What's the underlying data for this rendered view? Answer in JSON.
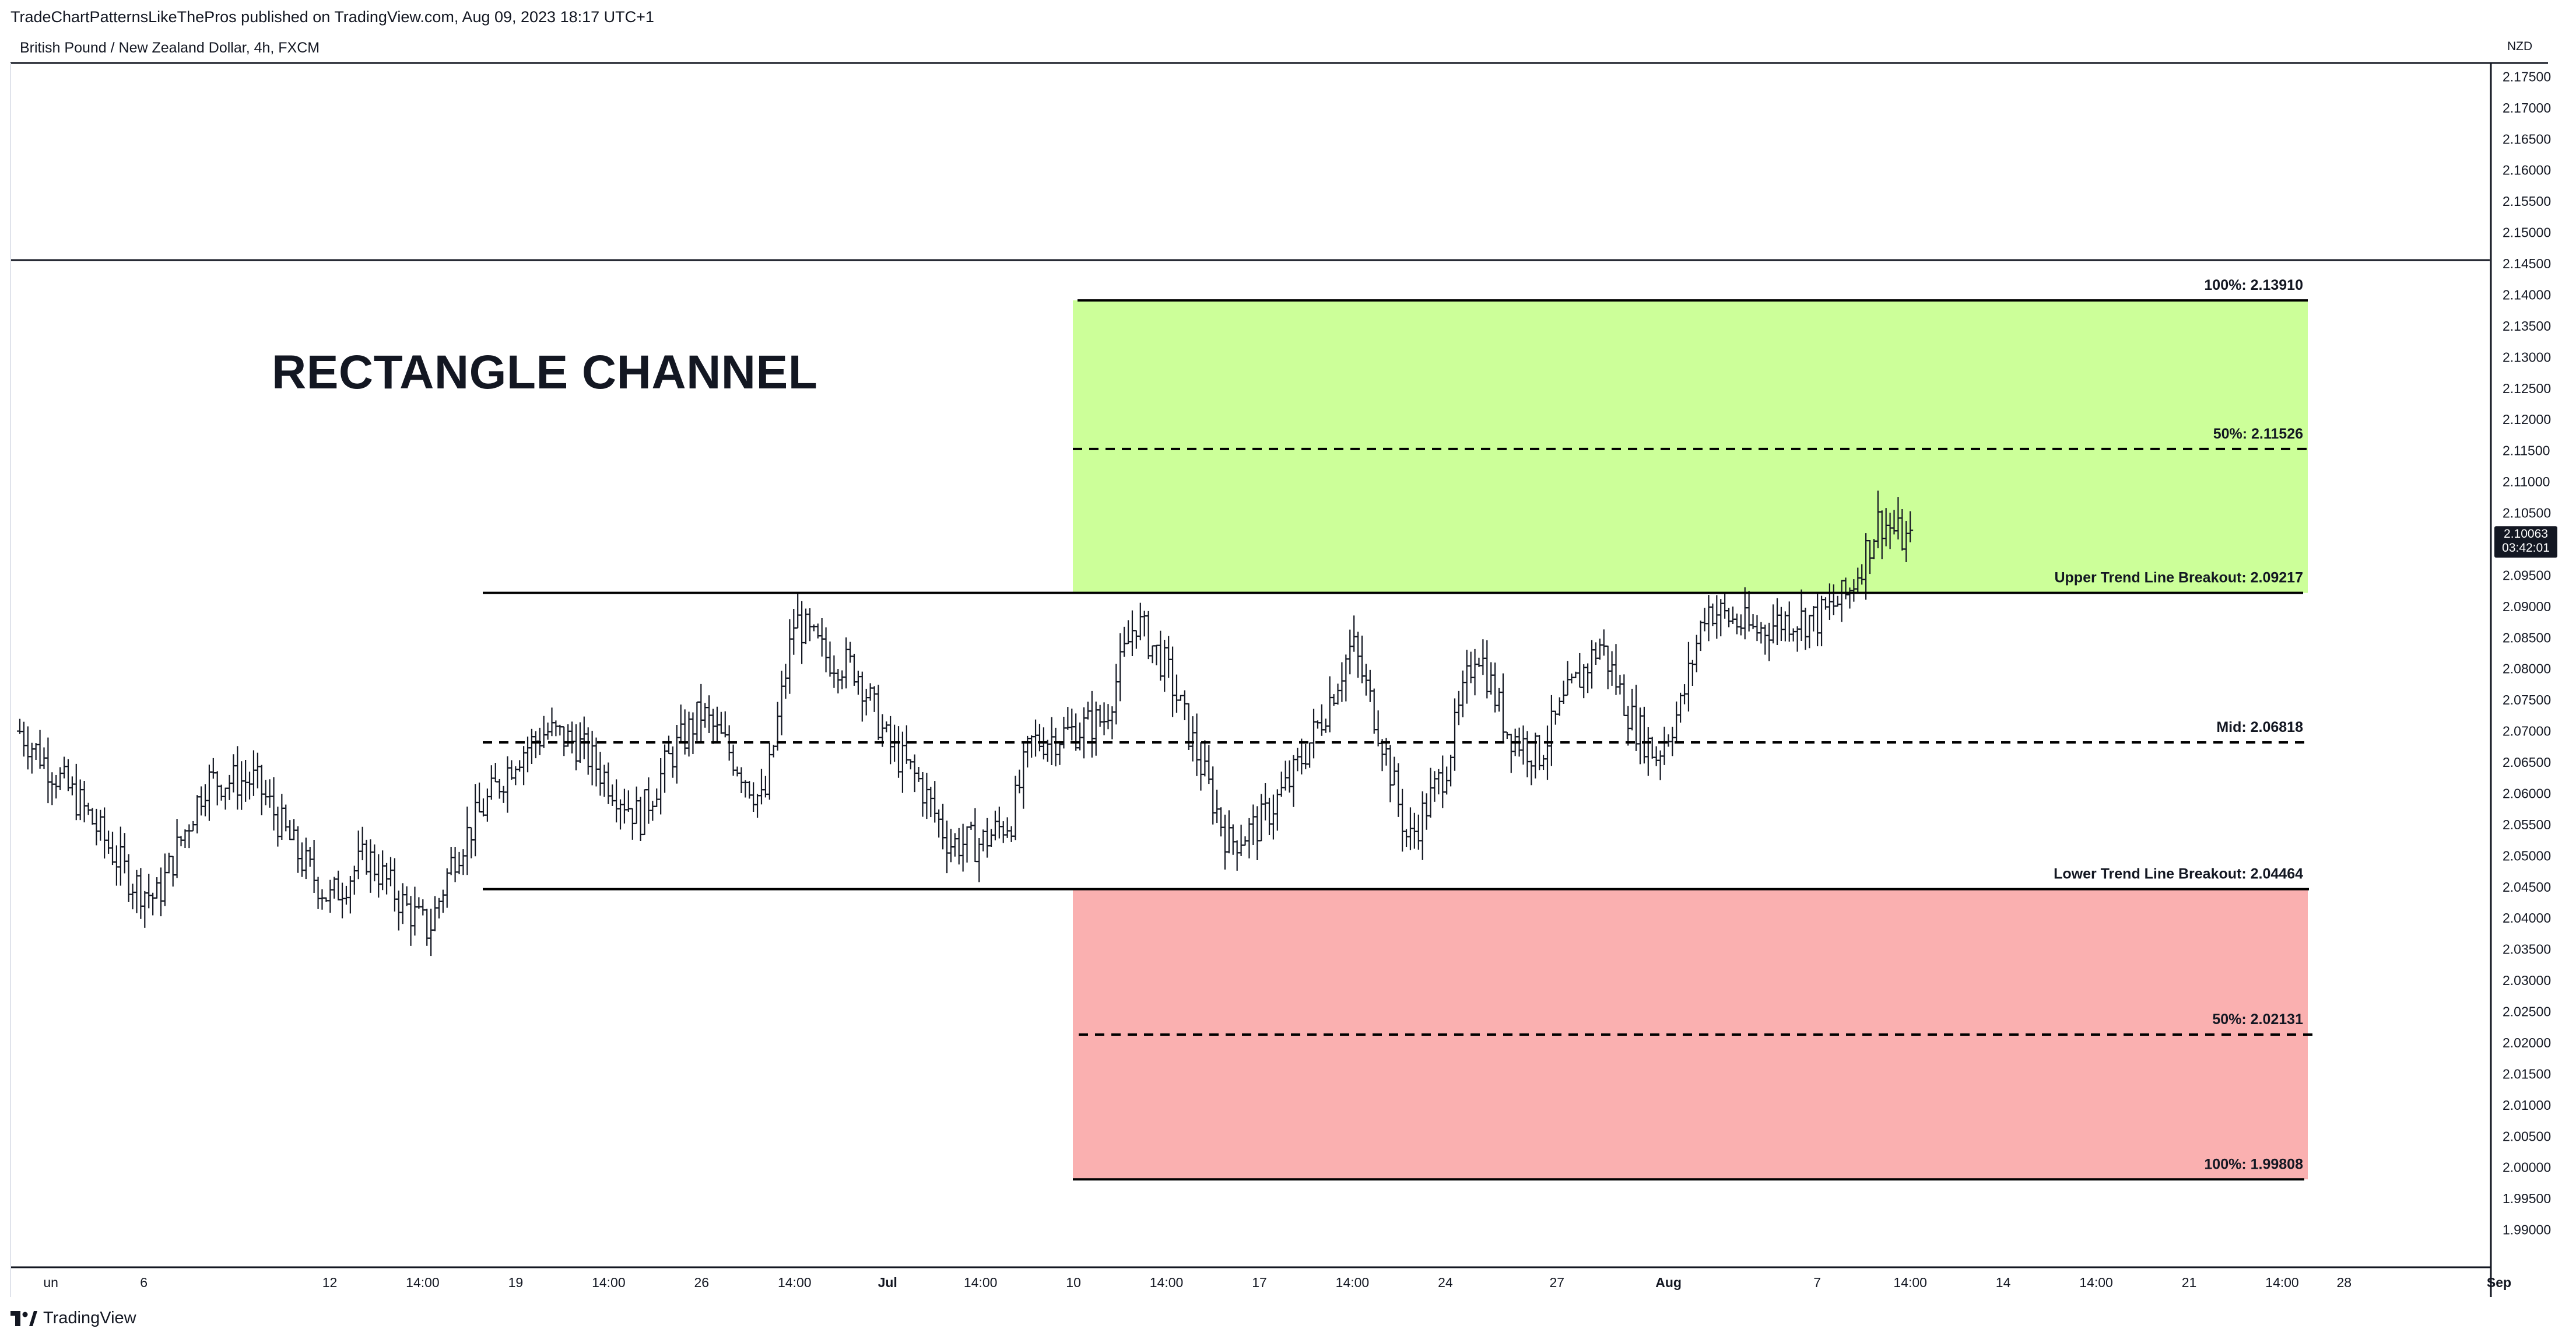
{
  "header": {
    "published_by": "TradeChartPatternsLikeThePros published on TradingView.com, Aug 09, 2023 18:17 UTC+1",
    "symbol": "British Pound / New Zealand Dollar, 4h, FXCM",
    "currency": "NZD"
  },
  "annotation_title": "RECTANGLE CHANNEL",
  "footer": {
    "brand": "TradingView"
  },
  "colors": {
    "profit_zone": "#ccff99",
    "loss_zone": "#fab0b0",
    "line": "#000000",
    "candle": "#131722"
  },
  "chart_data": {
    "type": "ohlc",
    "timeframe": "4h",
    "ylim": [
      1.988,
      2.177
    ],
    "y_ticks": [
      "2.17500",
      "2.17000",
      "2.16500",
      "2.16000",
      "2.15500",
      "2.15000",
      "2.14500",
      "2.14000",
      "2.13500",
      "2.13000",
      "2.12500",
      "2.12000",
      "2.11500",
      "2.11000",
      "2.10500",
      "2.10000",
      "2.09500",
      "2.09000",
      "2.08500",
      "2.08000",
      "2.07500",
      "2.07000",
      "2.06500",
      "2.06000",
      "2.05500",
      "2.05000",
      "2.04500",
      "2.04000",
      "2.03500",
      "2.03000",
      "2.02500",
      "2.02000",
      "2.01500",
      "2.01000",
      "2.00500",
      "2.00000",
      "1.99500",
      "1.99000"
    ],
    "x_ticks": [
      {
        "label": "un",
        "x": 0.5
      },
      {
        "label": "6",
        "x": 2
      },
      {
        "label": "12",
        "x": 5
      },
      {
        "label": "14:00",
        "x": 6.5
      },
      {
        "label": "19",
        "x": 8
      },
      {
        "label": "14:00",
        "x": 9.5
      },
      {
        "label": "26",
        "x": 11
      },
      {
        "label": "14:00",
        "x": 12.5
      },
      {
        "label": "Jul",
        "x": 14
      },
      {
        "label": "14:00",
        "x": 15.5
      },
      {
        "label": "10",
        "x": 17
      },
      {
        "label": "14:00",
        "x": 18.5
      },
      {
        "label": "17",
        "x": 20
      },
      {
        "label": "14:00",
        "x": 21.5
      },
      {
        "label": "24",
        "x": 23
      },
      {
        "label": "27",
        "x": 24.8
      },
      {
        "label": "Aug",
        "x": 26.6
      },
      {
        "label": "7",
        "x": 29
      },
      {
        "label": "14:00",
        "x": 30.5
      },
      {
        "label": "14",
        "x": 32
      },
      {
        "label": "14:00",
        "x": 33.5
      },
      {
        "label": "21",
        "x": 35
      },
      {
        "label": "14:00",
        "x": 36.5
      },
      {
        "label": "28",
        "x": 37.5
      },
      {
        "label": "Sep",
        "x": 40
      }
    ],
    "last_price": "2.10063",
    "countdown": "03:42:01",
    "levels": [
      {
        "name": "target-up-100",
        "label": "100%: 2.13910",
        "value": 2.1391,
        "style": "solid"
      },
      {
        "name": "target-up-50",
        "label": "50%: 2.11526",
        "value": 2.11526,
        "style": "dashed"
      },
      {
        "name": "upper-breakout",
        "label": "Upper Trend Line Breakout: 2.09217",
        "value": 2.09217,
        "style": "solid"
      },
      {
        "name": "mid",
        "label": "Mid: 2.06818",
        "value": 2.06818,
        "style": "dashed"
      },
      {
        "name": "lower-breakout",
        "label": "Lower Trend Line Breakout: 2.04464",
        "value": 2.04464,
        "style": "solid"
      },
      {
        "name": "target-down-50",
        "label": "50%: 2.02131",
        "value": 2.02131,
        "style": "dashed"
      },
      {
        "name": "target-down-100",
        "label": "100%: 1.99808",
        "value": 1.99808,
        "style": "solid"
      }
    ],
    "price_path": [
      [
        0,
        2.07
      ],
      [
        1,
        2.058
      ],
      [
        1.8,
        2.046
      ],
      [
        2.2,
        2.043
      ],
      [
        3,
        2.062
      ],
      [
        3.8,
        2.062
      ],
      [
        4.5,
        2.05
      ],
      [
        5,
        2.043
      ],
      [
        5.6,
        2.05
      ],
      [
        6.2,
        2.042
      ],
      [
        6.6,
        2.038
      ],
      [
        7,
        2.05
      ],
      [
        7.5,
        2.058
      ],
      [
        8,
        2.066
      ],
      [
        8.5,
        2.07
      ],
      [
        9,
        2.068
      ],
      [
        9.5,
        2.062
      ],
      [
        10,
        2.056
      ],
      [
        10.5,
        2.066
      ],
      [
        11,
        2.073
      ],
      [
        11.5,
        2.066
      ],
      [
        12,
        2.058
      ],
      [
        12.5,
        2.088
      ],
      [
        13,
        2.082
      ],
      [
        13.5,
        2.08
      ],
      [
        14,
        2.068
      ],
      [
        14.5,
        2.062
      ],
      [
        15,
        2.052
      ],
      [
        15.5,
        2.052
      ],
      [
        16,
        2.056
      ],
      [
        16.3,
        2.068
      ],
      [
        17,
        2.07
      ],
      [
        17.5,
        2.072
      ],
      [
        18,
        2.088
      ],
      [
        18.5,
        2.08
      ],
      [
        19,
        2.066
      ],
      [
        19.5,
        2.052
      ],
      [
        20,
        2.055
      ],
      [
        20.5,
        2.062
      ],
      [
        21,
        2.072
      ],
      [
        21.5,
        2.084
      ],
      [
        22,
        2.068
      ],
      [
        22.4,
        2.052
      ],
      [
        23,
        2.064
      ],
      [
        23.5,
        2.084
      ],
      [
        24,
        2.07
      ],
      [
        24.5,
        2.066
      ],
      [
        25,
        2.076
      ],
      [
        25.5,
        2.084
      ],
      [
        26,
        2.072
      ],
      [
        26.4,
        2.066
      ],
      [
        26.8,
        2.074
      ],
      [
        27.2,
        2.09
      ],
      [
        27.6,
        2.088
      ],
      [
        28,
        2.086
      ],
      [
        28.5,
        2.088
      ],
      [
        29,
        2.088
      ],
      [
        29.5,
        2.092
      ],
      [
        30,
        2.104
      ],
      [
        30.5,
        2.1
      ]
    ]
  }
}
